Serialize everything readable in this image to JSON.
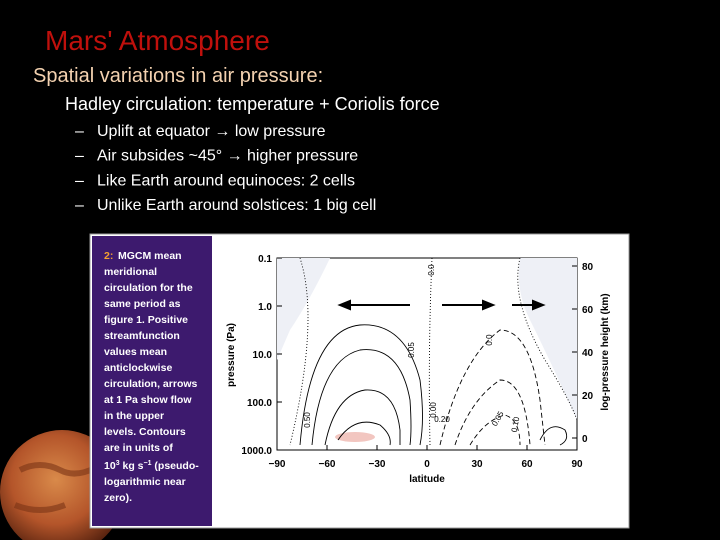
{
  "slide": {
    "title": "Mars' Atmosphere",
    "subtitle": "Spatial variations in air pressure:",
    "heading": "Hadley circulation: temperature + Coriolis force",
    "bullets": [
      {
        "dash": "–",
        "text": "Uplift at equator → low pressure"
      },
      {
        "dash": "–",
        "text": "Air subsides ~45° → higher pressure"
      },
      {
        "dash": "–",
        "text": "Like Earth around equinoces:  2 cells"
      },
      {
        "dash": "–",
        "text": "Unlike Earth around solstices:  1 big cell"
      }
    ],
    "figure": {
      "caption_label": "2:",
      "caption_lines": [
        "MGCM mean",
        "meridional",
        "circulation for the",
        "same period as",
        "figure 1. Positive",
        "streamfunction",
        "values mean",
        "anticlockwise",
        "circulation, arrows",
        "at 1 Pa show flow",
        "in the upper",
        "levels. Contours",
        "are in units of"
      ],
      "caption_units": [
        "10",
        "3",
        " kg s",
        "−1",
        " (pseudo-"
      ],
      "caption_tail": [
        "logarithmic near",
        "zero)."
      ],
      "y_label": "pressure (Pa)",
      "y_ticks": [
        "0.1",
        "1.0",
        "10.0",
        "100.0",
        "1000.0"
      ],
      "y2_label": "log-pressure height (km)",
      "y2_ticks": [
        "80",
        "60",
        "40",
        "20",
        "0"
      ],
      "x_label": "latitude",
      "x_ticks": [
        "−90",
        "−60",
        "−30",
        "0",
        "30",
        "60",
        "90"
      ],
      "contour_labels": [
        "0.0",
        "0.0",
        "0.05",
        "0.20",
        "0.50",
        "0.05",
        "0.10",
        "0.00"
      ]
    }
  }
}
